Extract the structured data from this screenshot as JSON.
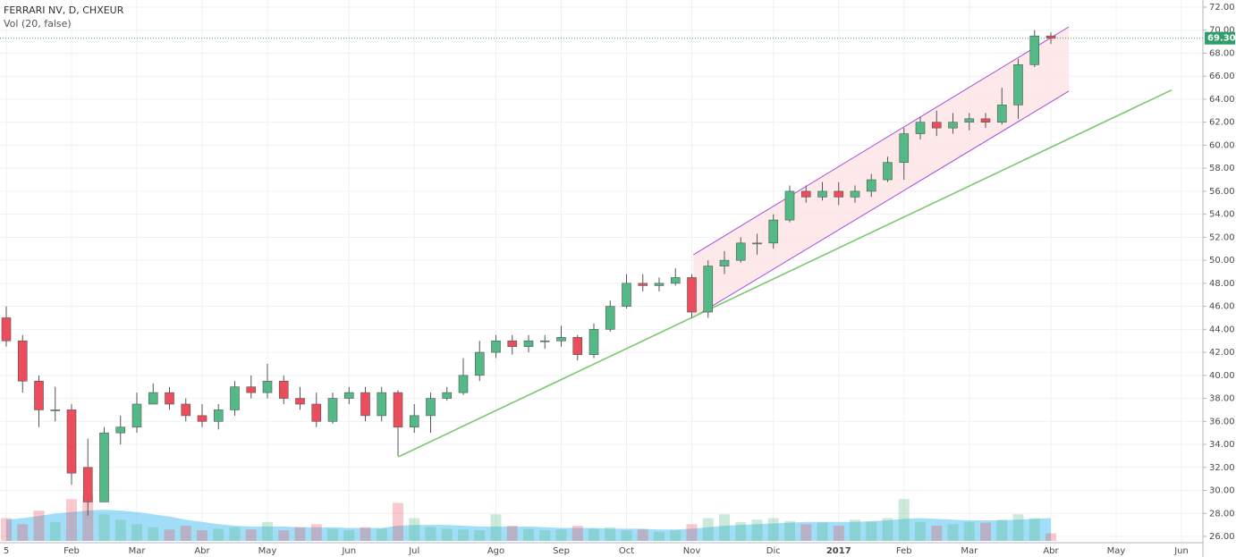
{
  "chart_data": {
    "type": "candlestick",
    "title": "FERRARI NV, D, CHXEUR",
    "subtitle": "Vol (20, false)",
    "categories": [
      "5",
      null,
      null,
      null,
      "Feb",
      null,
      null,
      null,
      "Mar",
      null,
      null,
      null,
      "Abr",
      null,
      null,
      null,
      "May",
      null,
      null,
      null,
      null,
      "Jun",
      null,
      null,
      null,
      "Jul",
      null,
      null,
      null,
      null,
      "Ago",
      null,
      null,
      null,
      "Sep",
      null,
      null,
      null,
      "Oct",
      null,
      null,
      null,
      "Nov",
      null,
      null,
      null,
      null,
      "Dic",
      null,
      null,
      null,
      "2017",
      null,
      null,
      null,
      "Feb",
      null,
      null,
      null,
      "Mar",
      null,
      null,
      null,
      null,
      "Abr",
      null,
      null,
      null,
      "May",
      null,
      null,
      null,
      "Jun"
    ],
    "open": [
      45,
      43,
      39.5,
      37,
      37,
      32,
      29,
      35,
      35.5,
      37.5,
      38.5,
      37.5,
      36.5,
      36,
      37,
      39,
      38.5,
      39.5,
      38,
      37.5,
      36,
      38,
      38.5,
      36.5,
      38.5,
      35.5,
      36.5,
      38,
      38.5,
      40,
      42,
      43,
      42.5,
      43,
      43,
      43.3,
      41.8,
      44,
      46,
      48,
      47.8,
      48,
      48.5,
      45.5,
      49.5,
      50,
      51.5,
      51.5,
      53.5,
      56,
      55.5,
      56,
      55.5,
      56,
      57,
      58.5,
      61,
      62,
      61.5,
      62,
      62.3,
      62,
      63.5,
      67,
      69.5,
      null,
      null,
      null,
      null,
      null,
      null,
      null,
      null
    ],
    "high": [
      46,
      43.5,
      40,
      39,
      37.5,
      34.5,
      35.5,
      36.5,
      38.5,
      39.3,
      39,
      38,
      37.5,
      37.5,
      39.5,
      40,
      41,
      40,
      39,
      38.5,
      38.5,
      39,
      39,
      39,
      38.7,
      37.5,
      38.5,
      39,
      41.5,
      43,
      43.5,
      43.5,
      43.5,
      43.5,
      44.3,
      43.5,
      44.5,
      46.5,
      48.8,
      48.8,
      48.5,
      49.3,
      48.8,
      50,
      50.8,
      52,
      52.3,
      54,
      56.5,
      56.5,
      56.8,
      56.8,
      56.5,
      57.5,
      59,
      61.5,
      62.5,
      63,
      62.8,
      62.8,
      62.8,
      65,
      67.5,
      70,
      69.8,
      null,
      null,
      null,
      null,
      null,
      null,
      null,
      null
    ],
    "low": [
      42.5,
      38.5,
      35.5,
      36,
      30.5,
      27.8,
      29,
      34,
      35,
      37.5,
      37,
      36,
      35.5,
      35.3,
      36.5,
      38,
      38,
      37.5,
      37,
      35.5,
      35.8,
      37.5,
      36,
      36,
      33,
      35,
      35,
      37.8,
      38.3,
      39.5,
      41.5,
      41.8,
      42,
      42.3,
      42.5,
      41.3,
      41.5,
      43.8,
      45.8,
      47.3,
      47.3,
      47.8,
      45,
      45,
      48.8,
      49.8,
      50.5,
      51,
      53.3,
      55,
      55.2,
      54.8,
      55,
      55.5,
      56.8,
      57,
      60.5,
      60.8,
      61,
      61.3,
      61.5,
      61.8,
      62.3,
      66.8,
      68.8,
      null,
      null,
      null,
      null,
      null,
      null,
      null,
      null
    ],
    "close": [
      43,
      39.5,
      37,
      37,
      31.5,
      29,
      35,
      35.5,
      37.5,
      38.5,
      37.5,
      36.5,
      36,
      37,
      39,
      38.5,
      39.5,
      38,
      37.5,
      36,
      38,
      38.5,
      36.5,
      38.5,
      35.5,
      36.5,
      38,
      38.5,
      40,
      42,
      43,
      42.5,
      43,
      43,
      43.3,
      41.8,
      44,
      46,
      48,
      47.8,
      48,
      48.5,
      45.5,
      49.5,
      50,
      51.5,
      51.5,
      53.5,
      56,
      55.5,
      56,
      55.5,
      56,
      57,
      58.5,
      61,
      62,
      61.5,
      62,
      62.3,
      62,
      63.5,
      67,
      69.5,
      69.3,
      null,
      null,
      null,
      null,
      null,
      null,
      null,
      null
    ],
    "volume": [
      30,
      22,
      40,
      25,
      55,
      60,
      35,
      28,
      22,
      18,
      15,
      20,
      14,
      16,
      18,
      15,
      25,
      14,
      18,
      22,
      16,
      14,
      18,
      16,
      50,
      30,
      18,
      16,
      15,
      14,
      35,
      20,
      16,
      14,
      15,
      20,
      16,
      18,
      14,
      15,
      12,
      14,
      22,
      30,
      35,
      25,
      28,
      30,
      26,
      22,
      24,
      20,
      28,
      25,
      30,
      55,
      25,
      20,
      22,
      25,
      24,
      28,
      35,
      30,
      10,
      null,
      null,
      null,
      null,
      null,
      null,
      null,
      null
    ],
    "volume_ma": [
      28,
      30,
      33,
      36,
      38,
      40,
      41,
      40,
      38,
      35,
      32,
      28,
      25,
      22,
      20,
      19,
      19,
      19,
      18,
      18,
      18,
      17,
      17,
      17,
      20,
      21,
      21,
      21,
      20,
      19,
      19,
      19,
      19,
      18,
      17,
      17,
      17,
      16,
      16,
      16,
      15,
      15,
      16,
      18,
      20,
      21,
      22,
      23,
      24,
      25,
      25,
      25,
      25,
      26,
      27,
      29,
      30,
      29,
      28,
      27,
      27,
      27,
      28,
      29,
      30,
      null,
      null,
      null,
      null,
      null,
      null,
      null,
      null
    ],
    "volume_ylim": [
      0,
      100
    ],
    "up_color": "#53b987",
    "down_color": "#eb4d5c",
    "volume_ma_color": "#56c3f0",
    "ylim": [
      26,
      72
    ],
    "yticks": [
      {
        "value": 26,
        "label": "26.00"
      },
      {
        "value": 28,
        "label": "28.00"
      },
      {
        "value": 30,
        "label": "30.00"
      },
      {
        "value": 32,
        "label": "32.00"
      },
      {
        "value": 34,
        "label": "34.00"
      },
      {
        "value": 36,
        "label": "36.00"
      },
      {
        "value": 38,
        "label": "38.00"
      },
      {
        "value": 40,
        "label": "40.00"
      },
      {
        "value": 42,
        "label": "42.00"
      },
      {
        "value": 44,
        "label": "44.00"
      },
      {
        "value": 46,
        "label": "46.00"
      },
      {
        "value": 48,
        "label": "48.00"
      },
      {
        "value": 50,
        "label": "50.00"
      },
      {
        "value": 52,
        "label": "52.00"
      },
      {
        "value": 54,
        "label": "54.00"
      },
      {
        "value": 56,
        "label": "56.00"
      },
      {
        "value": 58,
        "label": "58.00"
      },
      {
        "value": 60,
        "label": "60.00"
      },
      {
        "value": 62,
        "label": "62.00"
      },
      {
        "value": 64,
        "label": "64.00"
      },
      {
        "value": 66,
        "label": "66.00"
      },
      {
        "value": 68,
        "label": "68.00"
      },
      {
        "value": 70,
        "label": "70.00"
      },
      {
        "value": 72,
        "label": "72.00"
      }
    ],
    "last_price": {
      "value": 69.3,
      "label": "69.30"
    },
    "last_price_color": "#2e9e6a",
    "grid": true,
    "trendline": {
      "color": "#7bc96f",
      "x": [
        24.0,
        71.4
      ],
      "y": [
        32.9,
        64.8
      ]
    },
    "channel": {
      "color": "#a64ddb",
      "fill": "#fde4e4",
      "x": [
        42.1,
        65.1
      ],
      "upper": [
        50.48,
        70.29
      ],
      "lower": [
        45.04,
        64.7
      ]
    }
  }
}
